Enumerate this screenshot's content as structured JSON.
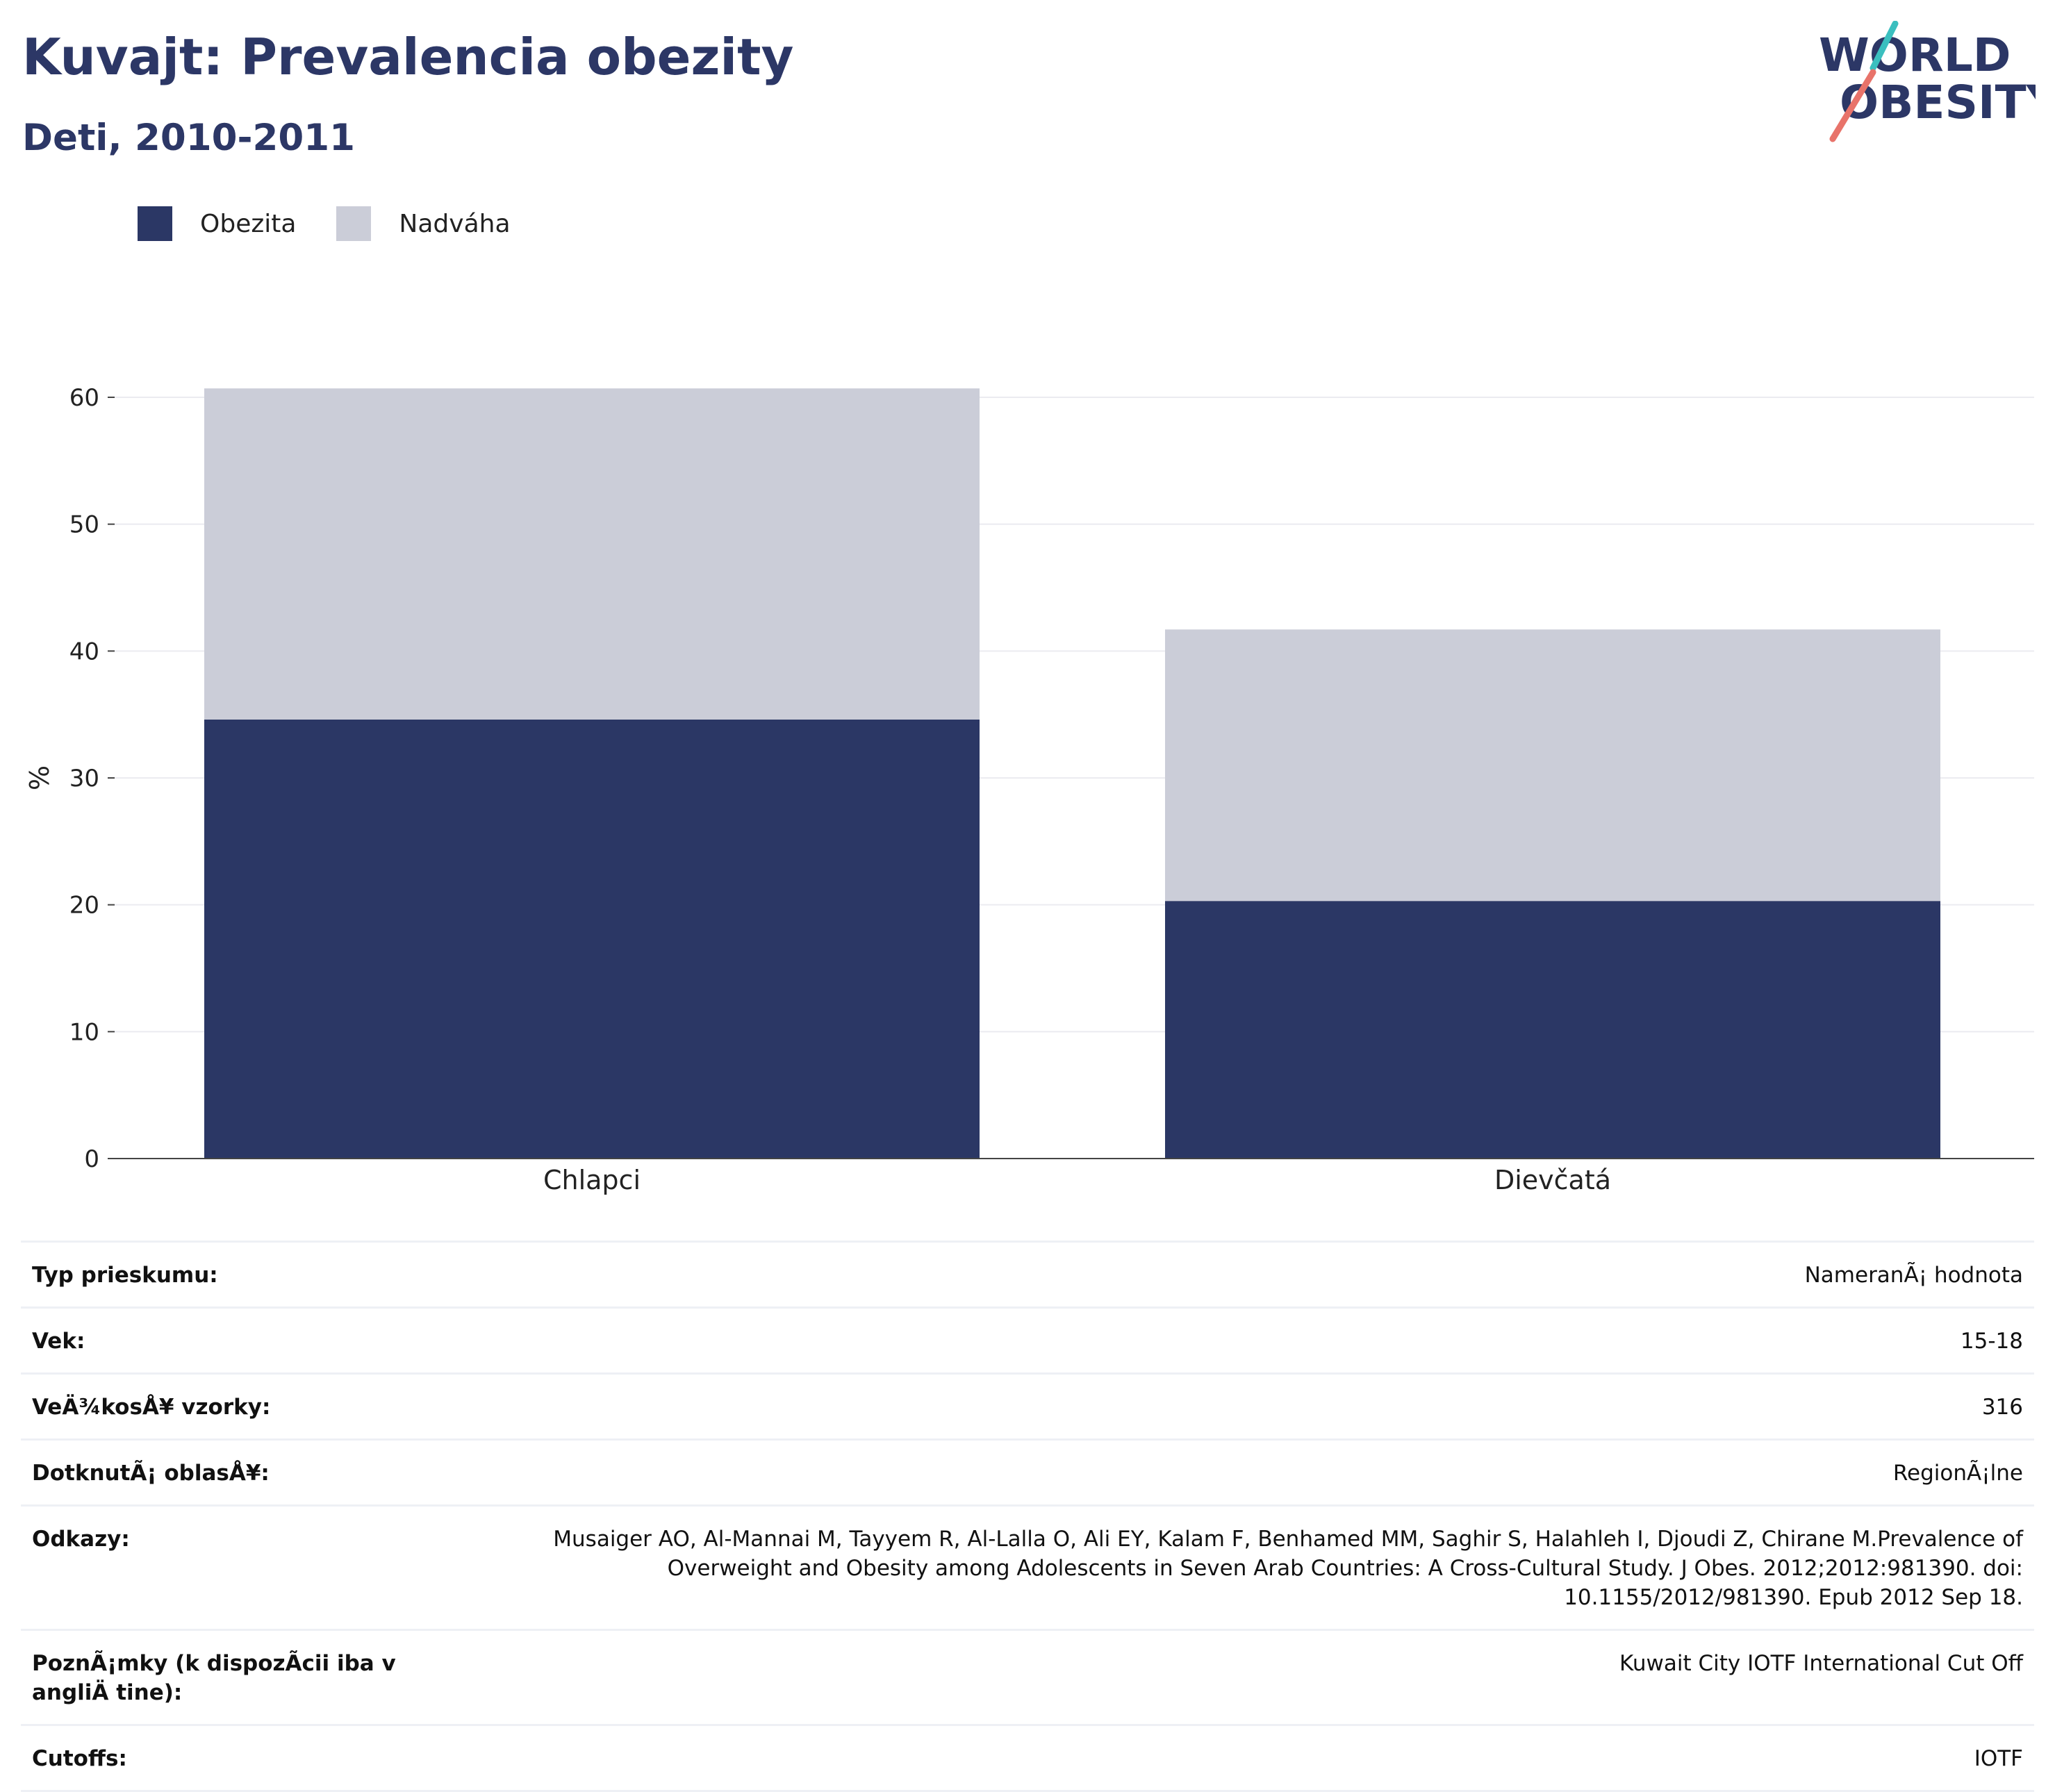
{
  "header": {
    "title": "Kuvajt: Prevalencia obezity",
    "subtitle": "Deti, 2010-2011"
  },
  "logo": {
    "line1": "WORLD",
    "line2": "OBESITY"
  },
  "colors": {
    "obesity": "#2b3765",
    "overweight": "#cbcdd8",
    "title": "#2c3766",
    "logo_teal": "#3bbfbf",
    "logo_coral": "#e8736a"
  },
  "legend": [
    {
      "label": "Obezita",
      "color": "#2b3765"
    },
    {
      "label": "Nadváha",
      "color": "#cbcdd8"
    }
  ],
  "chart_data": {
    "type": "bar",
    "stacked": true,
    "categories": [
      "Chlapci",
      "Dievčatá"
    ],
    "series": [
      {
        "name": "Obezita",
        "values": [
          34.6,
          20.3
        ]
      },
      {
        "name": "Nadváha",
        "values": [
          26.1,
          21.4
        ]
      }
    ],
    "ylabel": "%",
    "ylim": [
      0,
      66
    ],
    "yticks": [
      0,
      10,
      20,
      30,
      40,
      50,
      60
    ],
    "grid": true,
    "legend_position": "top-left"
  },
  "info_table": [
    {
      "label": "Typ prieskumu:",
      "value": "NameranÃ¡ hodnota"
    },
    {
      "label": "Vek:",
      "value": "15-18"
    },
    {
      "label": "VeÄ¾kosÅ¥ vzorky:",
      "value": "316"
    },
    {
      "label": "DotknutÃ¡ oblasÅ¥:",
      "value": "RegionÃ¡lne"
    },
    {
      "label": "Odkazy:",
      "value": "Musaiger AO, Al-Mannai M, Tayyem R, Al-Lalla O, Ali EY, Kalam F, Benhamed MM, Saghir S, Halahleh I, Djoudi Z, Chirane M.Prevalence of Overweight and Obesity among Adolescents in Seven Arab Countries: A Cross-Cultural Study. J Obes. 2012;2012:981390. doi: 10.1155/2012/981390. Epub 2012 Sep 18."
    },
    {
      "label": "PoznÃ¡mky (k dispozÃ­cii iba v angliÄ tine):",
      "value": "Kuwait City IOTF International Cut Off"
    },
    {
      "label": "Cutoffs:",
      "value": "IOTF"
    }
  ]
}
